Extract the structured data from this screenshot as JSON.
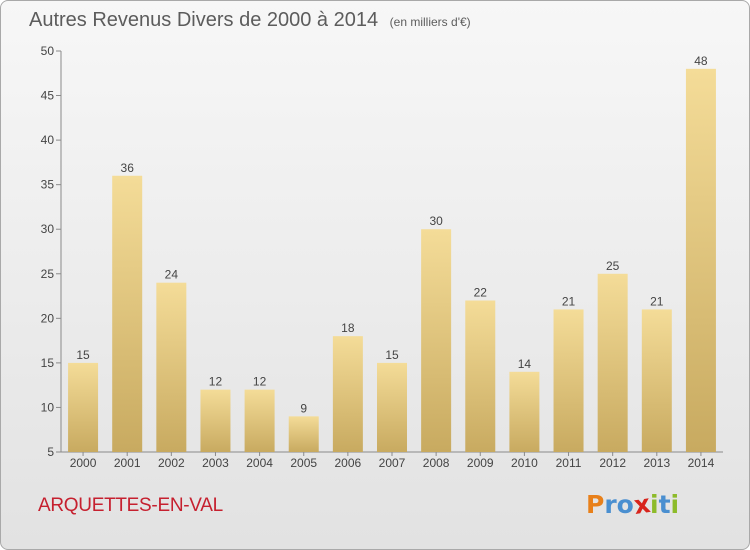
{
  "header": {
    "title": "Autres Revenus Divers de 2000 à 2014",
    "subtitle": "(en milliers d'€)"
  },
  "footer": {
    "commune": "ARQUETTES-EN-VAL",
    "logo_letters": [
      "P",
      "r",
      "o",
      "x",
      "i",
      "t",
      "i"
    ]
  },
  "colors": {
    "commune": "#c6202f",
    "bar_top": "#f4dc98",
    "bar_bottom": "#c8aa60",
    "logo": [
      "#e8801a",
      "#4a8fd0",
      "#4a8fd0",
      "#d8241c",
      "#8dbb2a",
      "#4a8fd0",
      "#8dbb2a"
    ]
  },
  "chart_data": {
    "type": "bar",
    "categories": [
      "2000",
      "2001",
      "2002",
      "2003",
      "2004",
      "2005",
      "2006",
      "2007",
      "2008",
      "2009",
      "2010",
      "2011",
      "2012",
      "2013",
      "2014"
    ],
    "values": [
      15,
      36,
      24,
      12,
      12,
      9,
      18,
      15,
      30,
      22,
      14,
      21,
      25,
      21,
      48
    ],
    "ylim": [
      5,
      50
    ],
    "yticks": [
      5,
      10,
      15,
      20,
      25,
      30,
      35,
      40,
      45,
      50
    ],
    "grid": false,
    "xlabel": "",
    "ylabel": ""
  }
}
